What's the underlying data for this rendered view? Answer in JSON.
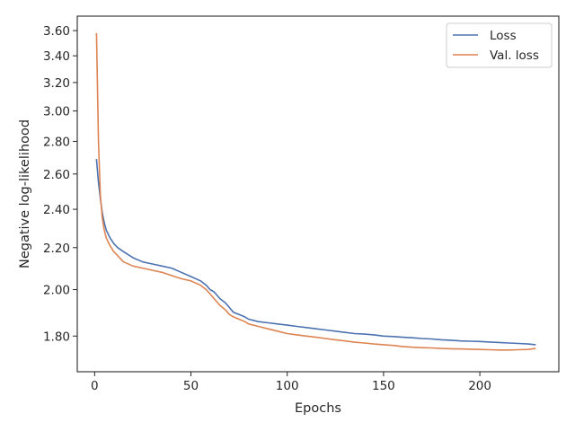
{
  "chart_data": {
    "type": "line",
    "xlabel": "Epochs",
    "ylabel": "Negative log-likelihood",
    "yscale": "log",
    "xlim": [
      -9,
      241
    ],
    "ylim": [
      1.66,
      3.72
    ],
    "xticks": [
      0,
      50,
      100,
      150,
      200
    ],
    "xtick_labels": [
      "0",
      "50",
      "100",
      "150",
      "200"
    ],
    "yticks": [
      1.8,
      2.0,
      2.2,
      2.4,
      2.6,
      2.8,
      3.0,
      3.2,
      3.4,
      3.6
    ],
    "ytick_labels": [
      "1.80",
      "2.00",
      "2.20",
      "2.40",
      "2.60",
      "2.80",
      "3.00",
      "3.20",
      "3.40",
      "3.60"
    ],
    "grid": false,
    "legend_position": "top-right",
    "series": [
      {
        "name": "Loss",
        "color": "#4c72b0",
        "x": [
          1,
          2,
          3,
          4,
          5,
          6,
          8,
          10,
          12,
          15,
          20,
          25,
          30,
          35,
          40,
          45,
          50,
          55,
          58,
          60,
          62,
          65,
          68,
          70,
          72,
          75,
          78,
          80,
          85,
          90,
          95,
          100,
          105,
          110,
          115,
          120,
          125,
          130,
          135,
          140,
          145,
          150,
          155,
          160,
          165,
          170,
          175,
          180,
          185,
          190,
          195,
          200,
          205,
          210,
          215,
          220,
          225,
          229
        ],
        "y": [
          2.69,
          2.55,
          2.46,
          2.38,
          2.33,
          2.29,
          2.25,
          2.22,
          2.2,
          2.18,
          2.15,
          2.13,
          2.12,
          2.11,
          2.1,
          2.08,
          2.06,
          2.04,
          2.02,
          2.0,
          1.99,
          1.96,
          1.94,
          1.92,
          1.9,
          1.89,
          1.88,
          1.87,
          1.86,
          1.855,
          1.85,
          1.845,
          1.84,
          1.835,
          1.83,
          1.825,
          1.82,
          1.815,
          1.81,
          1.808,
          1.805,
          1.8,
          1.798,
          1.795,
          1.793,
          1.79,
          1.788,
          1.785,
          1.783,
          1.78,
          1.779,
          1.778,
          1.776,
          1.774,
          1.772,
          1.77,
          1.768,
          1.765
        ]
      },
      {
        "name": "Val. loss",
        "color": "#dd8452",
        "x": [
          1,
          2,
          3,
          4,
          5,
          6,
          8,
          10,
          12,
          15,
          20,
          25,
          30,
          35,
          40,
          45,
          50,
          55,
          58,
          60,
          62,
          65,
          68,
          70,
          72,
          75,
          78,
          80,
          85,
          90,
          95,
          100,
          105,
          110,
          115,
          120,
          125,
          130,
          135,
          140,
          145,
          150,
          155,
          160,
          165,
          170,
          175,
          180,
          185,
          190,
          195,
          200,
          205,
          210,
          215,
          220,
          225,
          229
        ],
        "y": [
          3.58,
          2.8,
          2.48,
          2.35,
          2.29,
          2.25,
          2.21,
          2.18,
          2.16,
          2.13,
          2.11,
          2.1,
          2.09,
          2.08,
          2.065,
          2.05,
          2.04,
          2.02,
          2.0,
          1.98,
          1.96,
          1.93,
          1.91,
          1.89,
          1.88,
          1.87,
          1.86,
          1.85,
          1.84,
          1.83,
          1.82,
          1.81,
          1.805,
          1.8,
          1.795,
          1.79,
          1.785,
          1.78,
          1.775,
          1.772,
          1.768,
          1.765,
          1.762,
          1.758,
          1.755,
          1.753,
          1.752,
          1.75,
          1.749,
          1.748,
          1.747,
          1.746,
          1.745,
          1.744,
          1.744,
          1.745,
          1.746,
          1.75
        ]
      }
    ]
  }
}
